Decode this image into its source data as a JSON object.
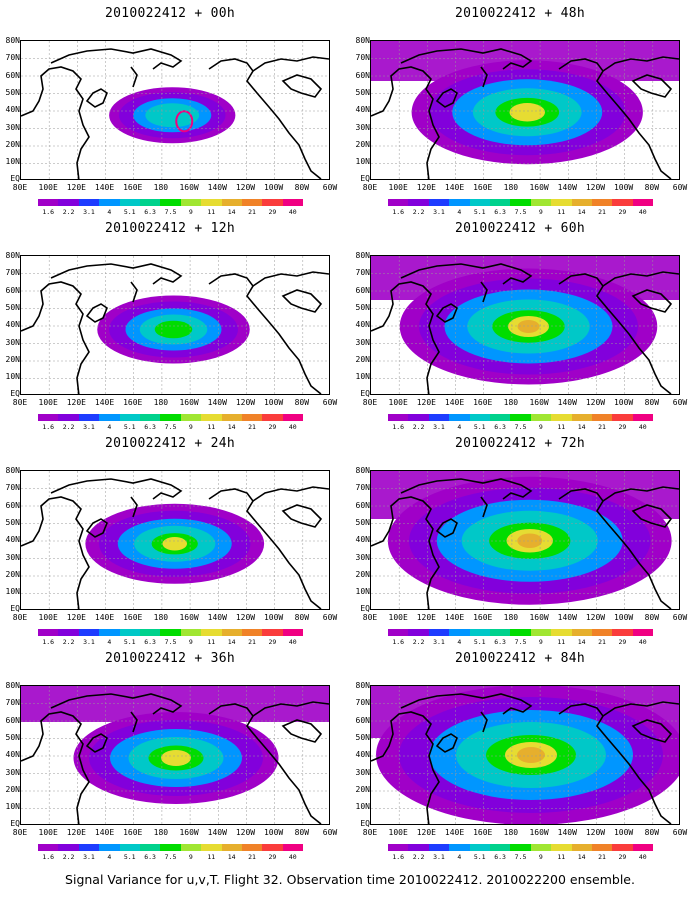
{
  "panels": [
    {
      "title": "2010022412 + 00h",
      "level": 1
    },
    {
      "title": "2010022412 + 12h",
      "level": 2
    },
    {
      "title": "2010022412 + 24h",
      "level": 3
    },
    {
      "title": "2010022412 + 36h",
      "level": 4
    },
    {
      "title": "2010022412 + 48h",
      "level": 5
    },
    {
      "title": "2010022412 + 60h",
      "level": 6
    },
    {
      "title": "2010022412 + 72h",
      "level": 7
    },
    {
      "title": "2010022412 + 84h",
      "level": 8
    }
  ],
  "lat_labels": [
    "80N",
    "70N",
    "60N",
    "50N",
    "40N",
    "30N",
    "20N",
    "10N",
    "EQ"
  ],
  "lon_labels": [
    "80E",
    "100E",
    "120E",
    "140E",
    "160E",
    "180",
    "160W",
    "140W",
    "120W",
    "100W",
    "80W",
    "60W"
  ],
  "colorbar": {
    "labels": [
      "1.6",
      "2.2",
      "3.1",
      "4",
      "5.1",
      "6.3",
      "7.5",
      "9",
      "11",
      "14",
      "21",
      "29",
      "40"
    ],
    "colors": [
      "#a000c8",
      "#8200dc",
      "#1e3cff",
      "#0096ff",
      "#00c8c8",
      "#00d28c",
      "#00dc00",
      "#a0e632",
      "#e6dc32",
      "#e6af2d",
      "#f08228",
      "#fa3c3c",
      "#f00082"
    ]
  },
  "footer": "Signal Variance for u,v,T. Flight 32. Observation time 2010022412. 2010022200 ensemble."
}
